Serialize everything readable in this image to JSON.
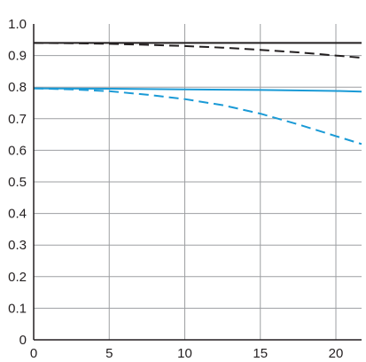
{
  "chart_data": {
    "type": "line",
    "title": "",
    "xlabel": "",
    "ylabel": "",
    "xlim": [
      0,
      21.7
    ],
    "ylim": [
      0,
      1.0
    ],
    "xticks": [
      0,
      5,
      10,
      15,
      20
    ],
    "yticks": [
      "0",
      "0.1",
      "0.2",
      "0.3",
      "0.4",
      "0.5",
      "0.6",
      "0.7",
      "0.8",
      "0.9",
      "1.0"
    ],
    "grid": true,
    "series": [
      {
        "color": "#231f20",
        "dash": "solid",
        "x": [
          0,
          5,
          10,
          15,
          20,
          21.7
        ],
        "y": [
          0.94,
          0.94,
          0.94,
          0.94,
          0.94,
          0.94
        ]
      },
      {
        "color": "#231f20",
        "dash": "dashed",
        "x": [
          0,
          2.5,
          5,
          7.5,
          10,
          12.5,
          15,
          17.5,
          20,
          21.7
        ],
        "y": [
          0.94,
          0.939,
          0.937,
          0.934,
          0.93,
          0.925,
          0.918,
          0.91,
          0.9,
          0.893
        ]
      },
      {
        "color": "#1a9ad6",
        "dash": "solid",
        "x": [
          0,
          5,
          10,
          15,
          20,
          21.7
        ],
        "y": [
          0.796,
          0.795,
          0.793,
          0.791,
          0.788,
          0.786
        ]
      },
      {
        "color": "#1a9ad6",
        "dash": "dashed",
        "x": [
          0,
          2.5,
          5,
          7.5,
          10,
          12.5,
          15,
          17.5,
          20,
          21.7
        ],
        "y": [
          0.796,
          0.793,
          0.787,
          0.776,
          0.762,
          0.743,
          0.716,
          0.682,
          0.645,
          0.62
        ]
      }
    ]
  }
}
